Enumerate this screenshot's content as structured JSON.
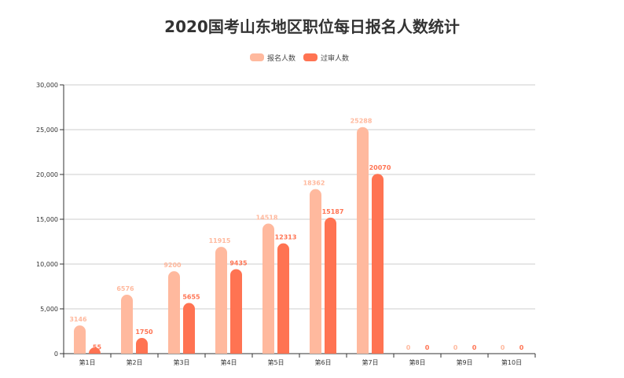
{
  "chart_data": {
    "type": "bar",
    "title": "2020国考山东地区职位每日报名人数统计",
    "categories": [
      "第1日",
      "第2日",
      "第3日",
      "第4日",
      "第5日",
      "第6日",
      "第7日",
      "第8日",
      "第9日",
      "第10日"
    ],
    "series": [
      {
        "name": "报名人数",
        "color": "#ffb99e",
        "values": [
          3146,
          6576,
          9200,
          11915,
          14518,
          18362,
          25288,
          0,
          0,
          0
        ]
      },
      {
        "name": "过审人数",
        "color": "#ff7352",
        "values": [
          55,
          1750,
          5655,
          9435,
          12313,
          15187,
          20070,
          0,
          0,
          0
        ]
      }
    ],
    "y_ticks": [
      "0",
      "5,000",
      "10,000",
      "15,000",
      "20,000",
      "25,000",
      "30,000"
    ],
    "ylim": [
      0,
      30000
    ],
    "grid": true,
    "legend_position": "top-center"
  }
}
